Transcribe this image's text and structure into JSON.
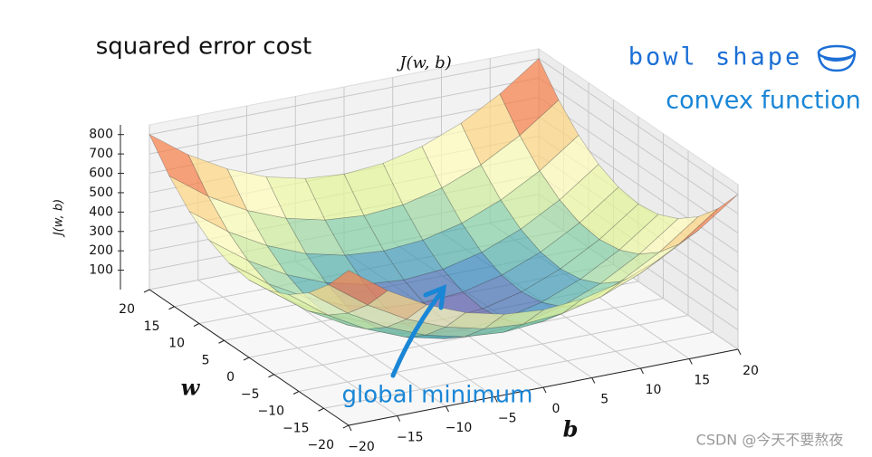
{
  "chart_data": {
    "type": "surface",
    "title": "J(w, b)",
    "xlabel": "b",
    "ylabel": "w",
    "zlabel": "J(w, b)",
    "colormap": "Spectral_r",
    "x": [
      -20,
      -16,
      -12,
      -8,
      -4,
      0,
      4,
      8,
      12,
      16,
      20
    ],
    "y": [
      -20,
      -16,
      -12,
      -8,
      -4,
      0,
      4,
      8,
      12,
      16,
      20
    ],
    "z": [
      [
        800,
        656,
        544,
        464,
        416,
        400,
        416,
        464,
        544,
        656,
        800
      ],
      [
        656,
        512,
        400,
        320,
        272,
        256,
        272,
        320,
        400,
        512,
        656
      ],
      [
        544,
        400,
        288,
        208,
        160,
        144,
        160,
        208,
        288,
        400,
        544
      ],
      [
        464,
        320,
        208,
        128,
        80,
        64,
        80,
        128,
        208,
        320,
        464
      ],
      [
        416,
        272,
        160,
        80,
        32,
        16,
        32,
        80,
        160,
        272,
        416
      ],
      [
        400,
        256,
        144,
        64,
        16,
        0,
        16,
        64,
        144,
        256,
        400
      ],
      [
        416,
        272,
        160,
        80,
        32,
        16,
        32,
        80,
        160,
        272,
        416
      ],
      [
        464,
        320,
        208,
        128,
        80,
        64,
        80,
        128,
        208,
        320,
        464
      ],
      [
        544,
        400,
        288,
        208,
        160,
        144,
        160,
        208,
        288,
        400,
        544
      ],
      [
        656,
        512,
        400,
        320,
        272,
        256,
        272,
        320,
        400,
        512,
        656
      ],
      [
        800,
        656,
        544,
        464,
        416,
        400,
        416,
        464,
        544,
        656,
        800
      ]
    ],
    "xlim": [
      -20,
      20
    ],
    "ylim": [
      -20,
      20
    ],
    "zlim": [
      0,
      850
    ],
    "xticks": [
      {
        "value": -20,
        "label": "−20"
      },
      {
        "value": -15,
        "label": "−15"
      },
      {
        "value": -10,
        "label": "−10"
      },
      {
        "value": -5,
        "label": "−5"
      },
      0,
      5,
      10,
      15,
      20
    ],
    "yticks": [
      {
        "value": -20,
        "label": "−20"
      },
      {
        "value": -15,
        "label": "−15"
      },
      {
        "value": -10,
        "label": "−10"
      },
      {
        "value": -5,
        "label": "−5"
      },
      0,
      5,
      10,
      15,
      20
    ],
    "zticks": [
      100,
      200,
      300,
      400,
      500,
      600,
      700,
      800
    ],
    "grid": true,
    "annotations": [
      "squared error cost",
      "bowl shape",
      "convex function",
      "global minimum",
      "CSDN @今天不要熬夜"
    ]
  }
}
